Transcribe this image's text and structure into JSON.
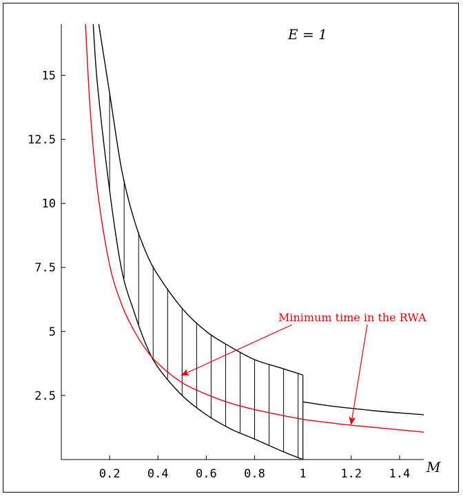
{
  "chart_data": {
    "type": "line",
    "title": "",
    "xlabel": "M",
    "ylabel": "",
    "xlim": [
      0,
      1.5
    ],
    "ylim": [
      0,
      17
    ],
    "grid": false,
    "legend": "none",
    "x_ticks": [
      {
        "value": 0.2,
        "label": "0.2"
      },
      {
        "value": 0.4,
        "label": "0.4"
      },
      {
        "value": 0.6,
        "label": "0.6"
      },
      {
        "value": 0.8,
        "label": "0.8"
      },
      {
        "value": 1.0,
        "label": "1"
      },
      {
        "value": 1.2,
        "label": "1.2"
      },
      {
        "value": 1.4,
        "label": "1.4"
      }
    ],
    "y_ticks": [
      {
        "value": 2.5,
        "label": "2.5"
      },
      {
        "value": 5,
        "label": "5"
      },
      {
        "value": 7.5,
        "label": "7.5"
      },
      {
        "value": 10,
        "label": "10"
      },
      {
        "value": 12.5,
        "label": "12.5"
      },
      {
        "value": 15,
        "label": "15"
      }
    ],
    "annotation_param": "E = 1",
    "series": [
      {
        "color": "#000000",
        "x": [
          0.155,
          0.2,
          0.25,
          0.3,
          0.35,
          0.4,
          0.5,
          0.6,
          0.7,
          0.8,
          0.9,
          1.0
        ],
        "y": [
          17,
          14.3,
          11.3,
          9.4,
          8.1,
          7.2,
          5.9,
          5.0,
          4.4,
          3.9,
          3.6,
          3.3
        ]
      },
      {
        "color": "#000000",
        "x": [
          0.132,
          0.15,
          0.2,
          0.25,
          0.3,
          0.35,
          0.4,
          0.5,
          0.6,
          0.7,
          0.8,
          0.9,
          1.0
        ],
        "y": [
          17,
          14.6,
          10.5,
          7.4,
          5.8,
          4.5,
          3.6,
          2.5,
          1.75,
          1.2,
          0.8,
          0.38,
          0.0
        ]
      },
      {
        "color": "#000000",
        "x": [
          1.0,
          1.1,
          1.2,
          1.3,
          1.4,
          1.5
        ],
        "y": [
          2.25,
          2.11,
          2.0,
          1.9,
          1.82,
          1.75
        ]
      },
      {
        "name": "Minimum time in the RWA",
        "color": "#e8000b",
        "x": [
          0.1,
          0.12,
          0.15,
          0.2,
          0.25,
          0.3,
          0.35,
          0.4,
          0.5,
          0.6,
          0.7,
          0.8,
          0.9,
          1.0,
          1.1,
          1.2,
          1.3,
          1.4,
          1.5
        ],
        "y": [
          17,
          13.6,
          10.5,
          7.6,
          6.05,
          5.05,
          4.3,
          3.75,
          3.0,
          2.55,
          2.2,
          1.95,
          1.75,
          1.57,
          1.45,
          1.34,
          1.25,
          1.16,
          1.07
        ]
      }
    ],
    "hatch_x": [
      0.2,
      0.26,
      0.32,
      0.38,
      0.44,
      0.5,
      0.56,
      0.62,
      0.68,
      0.74,
      0.8,
      0.86,
      0.92,
      0.98
    ],
    "annotation": {
      "text": "Minimum time in the RWA",
      "color": "#e8000b",
      "arrow_targets": [
        [
          0.5,
          3.3
        ],
        [
          1.2,
          1.4
        ]
      ]
    }
  }
}
